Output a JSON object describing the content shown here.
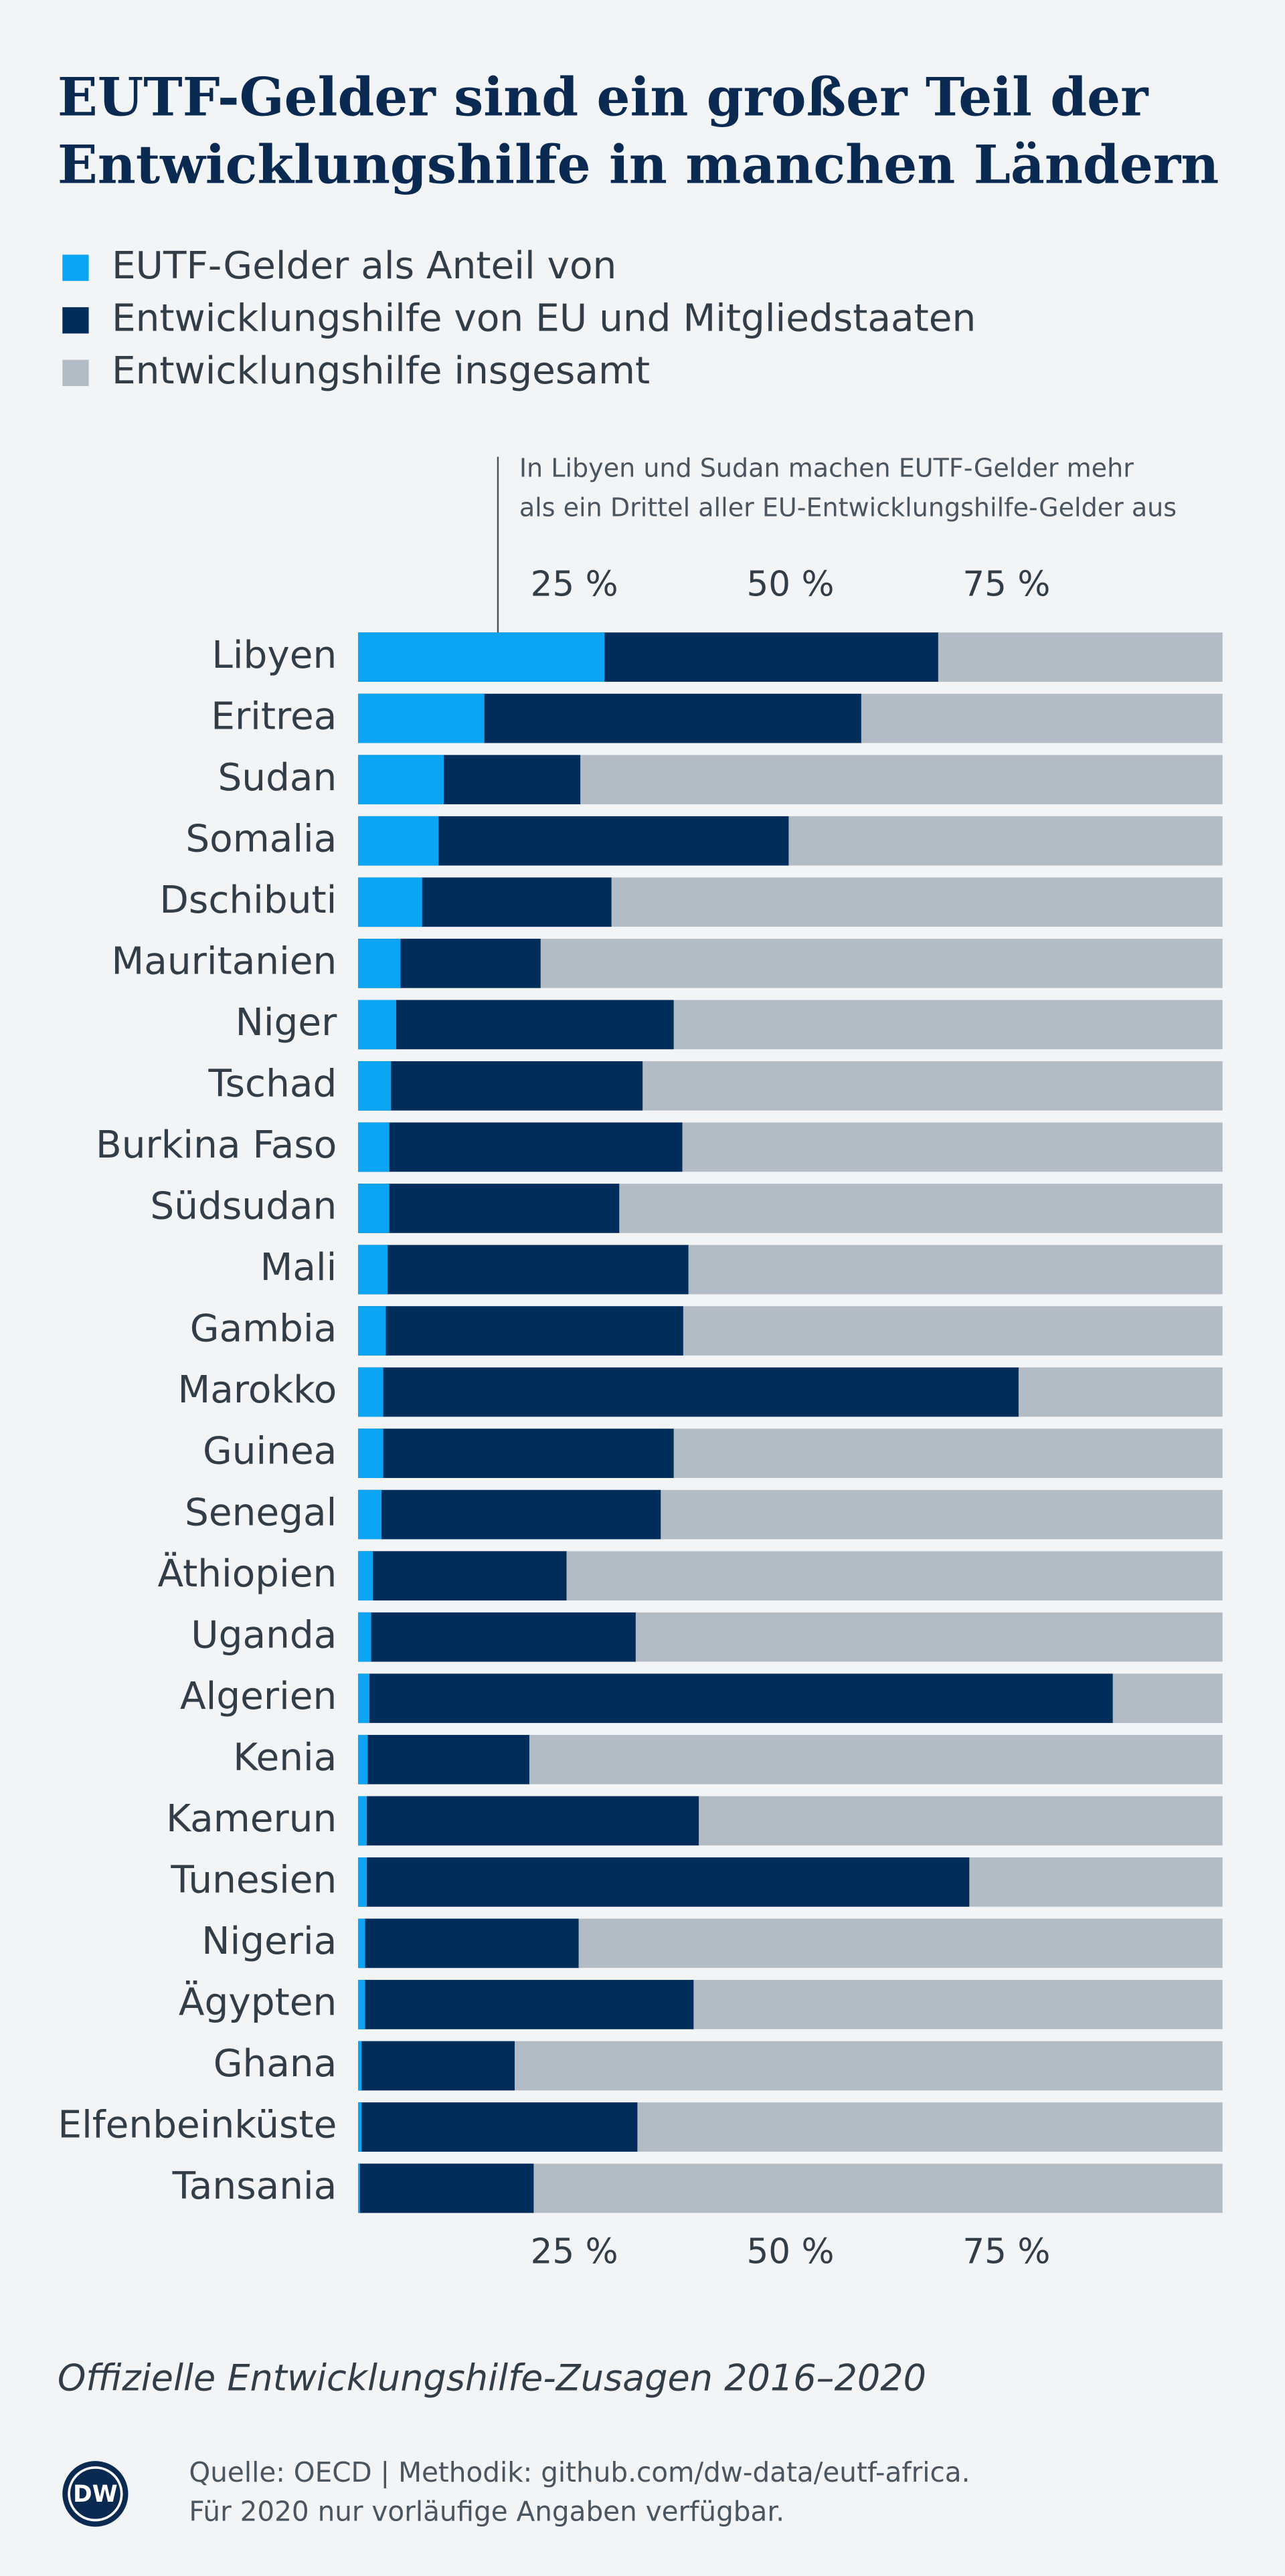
{
  "chart_data": {
    "type": "bar",
    "orientation": "horizontal",
    "title": [
      "EUTF-Gelder sind ein großer Teil der",
      "Entwicklungshilfe in manchen Ländern"
    ],
    "annotation": [
      "In Libyen und Sudan machen EUTF-Gelder mehr",
      "als ein Drittel aller EU-Entwicklungshilfe-Gelder aus"
    ],
    "subtitle": "Offizielle Entwicklungshilfe-Zusagen 2016–2020",
    "source": [
      "Quelle: OECD | Methodik: github.com/dw-data/eutf-africa.",
      "Für 2020 nur vorläufige Angaben verfügbar."
    ],
    "logo": "DW",
    "categories": [
      "Libyen",
      "Eritrea",
      "Sudan",
      "Somalia",
      "Dschibuti",
      "Mauritanien",
      "Niger",
      "Tschad",
      "Burkina Faso",
      "Südsudan",
      "Mali",
      "Gambia",
      "Marokko",
      "Guinea",
      "Senegal",
      "Äthiopien",
      "Uganda",
      "Algerien",
      "Kenia",
      "Kamerun",
      "Tunesien",
      "Nigeria",
      "Ägypten",
      "Ghana",
      "Elfenbeinküste",
      "Tansania"
    ],
    "series": [
      {
        "name": "Entwicklungshilfe insgesamt",
        "color": "#b3bcc5",
        "values": [
          100,
          100,
          100,
          100,
          100,
          100,
          100,
          100,
          100,
          100,
          100,
          100,
          100,
          100,
          100,
          100,
          100,
          100,
          100,
          100,
          100,
          100,
          100,
          100,
          100,
          100
        ]
      },
      {
        "name": "Entwicklungshilfe von EU und Mitgliedstaaten",
        "color": "#002d5a",
        "values": [
          67.1,
          58.2,
          25.7,
          49.8,
          29.3,
          21.1,
          36.5,
          32.9,
          37.5,
          30.2,
          38.2,
          37.6,
          76.4,
          36.5,
          35.0,
          24.1,
          32.1,
          87.3,
          19.8,
          39.4,
          70.7,
          25.5,
          38.8,
          18.1,
          32.3,
          20.3
        ]
      },
      {
        "name": "EUTF-Gelder als Anteil von",
        "color": "#0ba5f4",
        "values": [
          28.5,
          14.6,
          9.9,
          9.3,
          7.4,
          4.9,
          4.4,
          3.8,
          3.6,
          3.6,
          3.4,
          3.2,
          2.9,
          2.9,
          2.7,
          1.7,
          1.5,
          1.3,
          1.1,
          1.0,
          1.0,
          0.8,
          0.8,
          0.4,
          0.4,
          0.2
        ]
      }
    ],
    "xlim": [
      0,
      100
    ],
    "xticks": [
      {
        "value": 25,
        "label": "25 %"
      },
      {
        "value": 50,
        "label": "50 %"
      },
      {
        "value": 75,
        "label": "75 %"
      }
    ],
    "grid": false
  }
}
